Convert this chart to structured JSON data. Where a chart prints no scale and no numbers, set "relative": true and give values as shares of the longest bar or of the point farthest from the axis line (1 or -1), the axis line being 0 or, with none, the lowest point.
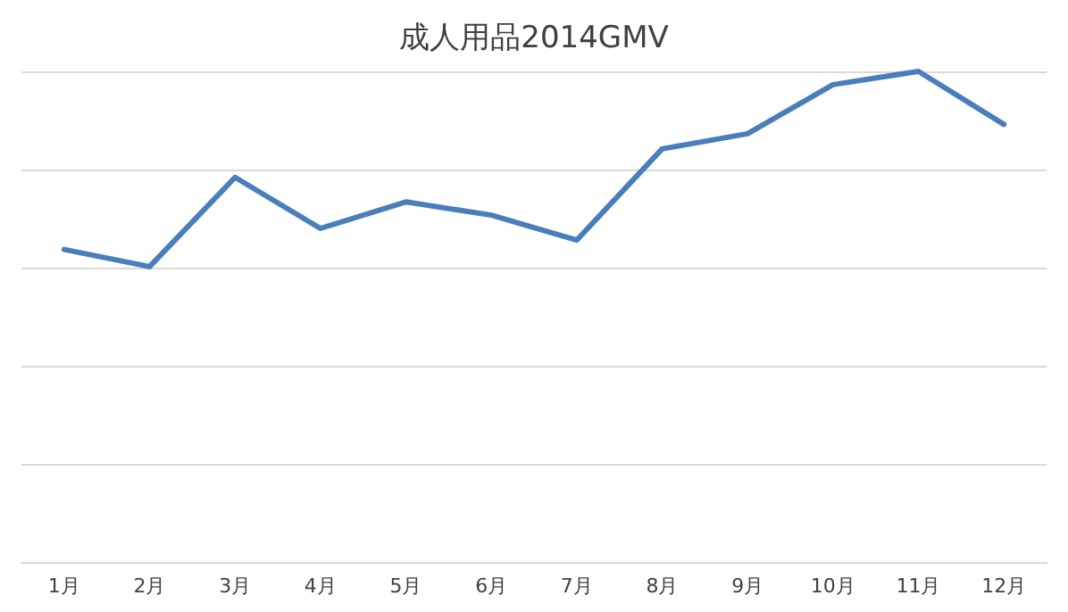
{
  "chart_data": {
    "type": "line",
    "title": "成人用品2014GMV",
    "relative": true,
    "grid": "y",
    "marker": "none",
    "line_style": "solid",
    "categories": [
      "1月",
      "2月",
      "3月",
      "4月",
      "5月",
      "6月",
      "7月",
      "8月",
      "9月",
      "10月",
      "11月",
      "12月"
    ],
    "series": [
      {
        "color": "#4a7ebb",
        "values": [
          0.637,
          0.602,
          0.784,
          0.68,
          0.734,
          0.707,
          0.656,
          0.842,
          0.873,
          0.973,
          1,
          0.892
        ]
      }
    ]
  }
}
